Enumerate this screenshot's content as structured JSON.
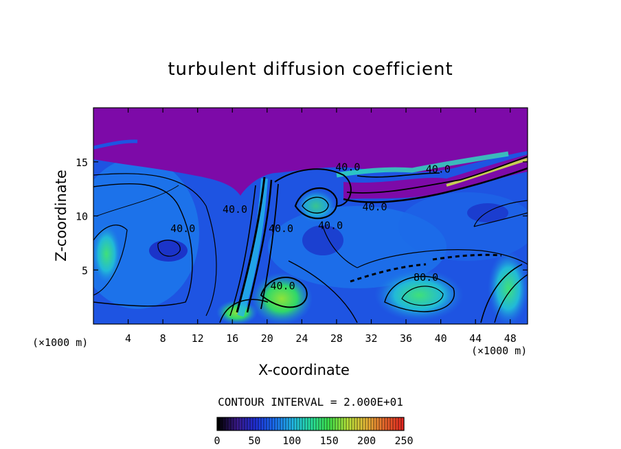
{
  "chart_data": {
    "type": "heatmap",
    "title": "turbulent diffusion coefficient",
    "xlabel": "X-coordinate",
    "ylabel": "Z-coordinate",
    "x_unit": "(×1000 m)",
    "z_unit": "(×1000 m)",
    "xlim": [
      0,
      50
    ],
    "ylim": [
      0,
      20
    ],
    "x_ticks": [
      4,
      8,
      12,
      16,
      20,
      24,
      28,
      32,
      36,
      40,
      44,
      48
    ],
    "y_ticks": [
      5,
      10,
      15
    ],
    "contour_interval_text": "CONTOUR INTERVAL = 2.000E+01",
    "contour_labels": [
      {
        "text": "40.0",
        "x": 10.3,
        "z": 8.5
      },
      {
        "text": "40.0",
        "x": 16.3,
        "z": 10.3
      },
      {
        "text": "40.0",
        "x": 21.6,
        "z": 8.5
      },
      {
        "text": "40.0",
        "x": 27.3,
        "z": 8.8
      },
      {
        "text": "40.0",
        "x": 32.4,
        "z": 10.5
      },
      {
        "text": "40.0",
        "x": 39.7,
        "z": 14.0
      },
      {
        "text": "80.0",
        "x": 38.3,
        "z": 4.0
      },
      {
        "text": "40.0",
        "x": 29.3,
        "z": 14.2
      },
      {
        "text": "40.0",
        "x": 21.8,
        "z": 3.2
      }
    ],
    "colorbar": {
      "min": 0,
      "max": 250,
      "ticks": [
        0,
        50,
        100,
        150,
        200,
        250
      ],
      "colors": [
        "#000000",
        "#3a1a8a",
        "#1e2ed6",
        "#1b6cf0",
        "#22b6e8",
        "#27e0a0",
        "#3ee04a",
        "#b5e23a",
        "#e6b838",
        "#e86a2c",
        "#e52a22"
      ]
    },
    "colors": {
      "background_high": "#7d0aa8",
      "background_low": "#1e4de0"
    }
  }
}
